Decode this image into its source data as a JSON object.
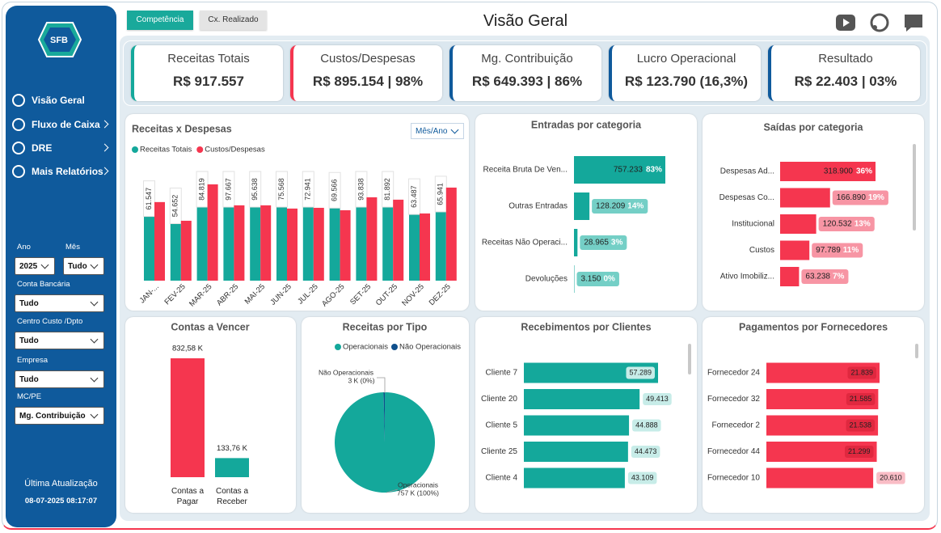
{
  "sidebar": {
    "logo": "SFB",
    "nav": [
      "Visão Geral",
      "Fluxo de Caixa",
      "DRE",
      "Mais Relatórios"
    ],
    "filters": [
      {
        "label": "Ano",
        "value": "2025"
      },
      {
        "label": "Mês",
        "value": "Tudo"
      },
      {
        "label": "Conta Bancária",
        "value": "Tudo"
      },
      {
        "label": "Centro Custo /Dpto",
        "value": "Tudo"
      },
      {
        "label": "Empresa",
        "value": "Tudo"
      },
      {
        "label": "MC/PE",
        "value": "Mg. Contribuição"
      }
    ],
    "last_update_label": "Última Atualização",
    "last_update": "08-07-2025 08:17:07"
  },
  "header": {
    "tabs": [
      "Competência",
      "Cx. Realizado"
    ],
    "title": "Visão Geral"
  },
  "kpis": [
    {
      "label": "Receitas Totais",
      "value": "R$ 917.557",
      "color": "#14a89b"
    },
    {
      "label": "Custos/Despesas",
      "value": "R$ 895.154 | 98%",
      "color": "#f5364f"
    },
    {
      "label": "Mg. Contribuição",
      "value": "R$ 649.393 | 86%",
      "color": "#0f5a9c"
    },
    {
      "label": "Lucro Operacional",
      "value": "R$ 123.790 (16,3%)",
      "color": "#0f5a9c"
    },
    {
      "label": "Resultado",
      "value": "R$ 22.403 | 03%",
      "color": "#0f5a9c"
    }
  ],
  "chart_data": [
    {
      "type": "bar",
      "title": "Receitas x Despesas",
      "dropdown": "Mês/Ano",
      "categories": [
        "JAN-...",
        "FEV-25",
        "MAR-25",
        "ABR-25",
        "MAI-25",
        "JUN-25",
        "JUL-25",
        "AGO-25",
        "SET-25",
        "OUT-25",
        "NOV-25",
        "DEZ-25"
      ],
      "series": [
        {
          "name": "Receitas Totais",
          "color": "#14a89b",
          "values": [
            61547,
            54652,
            84819,
            97667,
            95638,
            75568,
            72941,
            69566,
            93838,
            81892,
            63487,
            65941
          ],
          "value_labels": [
            "61.547",
            "54.652",
            "84.819",
            "97.667",
            "95.638",
            "75.568",
            "72.941",
            "69.566",
            "93.838",
            "81.892",
            "63.487",
            "65.941"
          ]
        },
        {
          "name": "Custos/Despesas",
          "color": "#f5364f",
          "values": [
            75300,
            57400,
            92300,
            72200,
            72200,
            69100,
            69800,
            67500,
            79900,
            77600,
            64400,
            89200
          ]
        }
      ],
      "legend": "top-left"
    },
    {
      "type": "hbar",
      "title": "Entradas por categoria",
      "categories": [
        "Receita Bruta De Ven...",
        "Outras Entradas",
        "Receitas Não Operaci...",
        "Devoluções"
      ],
      "values": [
        757233,
        128209,
        28965,
        3150
      ],
      "value_labels": [
        "757.233",
        "128.209",
        "28.965",
        "3.150"
      ],
      "percent_labels": [
        "83%",
        "14%",
        "3%",
        "0%"
      ],
      "color": "#14a89b"
    },
    {
      "type": "hbar",
      "title": "Saídas por categoria",
      "categories": [
        "Despesas Ad...",
        "Despesas Co...",
        "Institucional",
        "Custos",
        "Ativo Imobiliz..."
      ],
      "values": [
        318900,
        166890,
        120532,
        97789,
        63238
      ],
      "value_labels": [
        "318.900",
        "166.890",
        "120.532",
        "97.789",
        "63.238"
      ],
      "percent_labels": [
        "36%",
        "19%",
        "13%",
        "11%",
        "7%"
      ],
      "color": "#f5364f"
    },
    {
      "type": "bar",
      "title": "Contas a Vencer",
      "categories": [
        "Contas a Pagar",
        "Contas a Receber"
      ],
      "values": [
        832580,
        133760
      ],
      "value_labels": [
        "832,58 K",
        "133,76 K"
      ],
      "colors": [
        "#f5364f",
        "#14a89b"
      ]
    },
    {
      "type": "pie",
      "title": "Receitas por Tipo",
      "categories": [
        "Operacionais",
        "Não Operacionais"
      ],
      "values": [
        757,
        3
      ],
      "value_labels": [
        "757 K (100%)",
        "3 K (0%)"
      ],
      "colors": [
        "#14a89b",
        "#0f4f8c"
      ],
      "legend": "top"
    },
    {
      "type": "hbar",
      "title": "Recebimentos por Clientes",
      "categories": [
        "Cliente 7",
        "Cliente 20",
        "Cliente 5",
        "Cliente 25",
        "Cliente 4"
      ],
      "values": [
        57289,
        49413,
        44888,
        44473,
        43109
      ],
      "value_labels": [
        "57.289",
        "49.413",
        "44.888",
        "44.473",
        "43.109"
      ],
      "color": "#14a89b"
    },
    {
      "type": "hbar",
      "title": "Pagamentos por Fornecedores",
      "categories": [
        "Fornecedor 24",
        "Fornecedor 32",
        "Fornecedor 2",
        "Fornecedor 44",
        "Fornecedor 10"
      ],
      "values": [
        21839,
        21585,
        21538,
        21299,
        20610
      ],
      "value_labels": [
        "21.839",
        "21.585",
        "21.538",
        "21.299",
        "20.610"
      ],
      "color": "#f5364f"
    }
  ]
}
